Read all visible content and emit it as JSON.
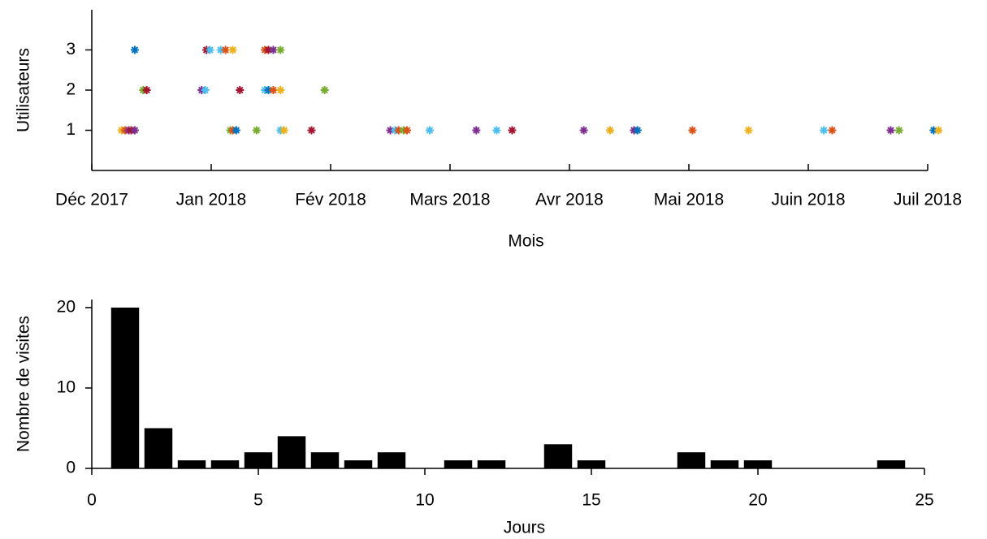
{
  "chart_data": [
    {
      "type": "scatter",
      "xlabel": "Mois",
      "ylabel": "Utilisateurs",
      "x": [
        0.36,
        0.96,
        0.99,
        1.08,
        1.12,
        1.18,
        1.45,
        1.48,
        1.52,
        1.58,
        0.43,
        0.46,
        0.92,
        0.95,
        1.24,
        1.45,
        1.48,
        1.52,
        1.58,
        1.95,
        0.25,
        0.28,
        0.31,
        0.33,
        0.36,
        1.16,
        1.18,
        1.21,
        1.38,
        1.58,
        1.61,
        1.84,
        2.5,
        2.54,
        2.57,
        2.61,
        2.64,
        2.83,
        3.22,
        3.39,
        3.52,
        4.12,
        4.34,
        4.54,
        4.57,
        5.03,
        5.5,
        6.13,
        6.2,
        6.69,
        6.76,
        7.05,
        7.09
      ],
      "values": [
        3,
        3,
        3,
        3,
        3,
        3,
        3,
        3,
        3,
        3,
        2,
        2,
        2,
        2,
        2,
        2,
        2,
        2,
        2,
        2,
        1,
        1,
        1,
        1,
        1,
        1,
        1,
        1,
        1,
        1,
        1,
        1,
        1,
        1,
        1,
        1,
        1,
        1,
        1,
        1,
        1,
        1,
        1,
        1,
        1,
        1,
        1,
        1,
        1,
        1,
        1,
        1,
        1
      ],
      "colors": [
        "#0072BD",
        "#A2142F",
        "#4DBEEE",
        "#4DBEEE",
        "#D95319",
        "#EDB120",
        "#D95319",
        "#A2142F",
        "#7E2F8E",
        "#77AC30",
        "#77AC30",
        "#A2142F",
        "#7E2F8E",
        "#4DBEEE",
        "#A2142F",
        "#4DBEEE",
        "#0072BD",
        "#D95319",
        "#EDB120",
        "#77AC30",
        "#EDB120",
        "#D95319",
        "#7E2F8E",
        "#A2142F",
        "#7E2F8E",
        "#77AC30",
        "#D95319",
        "#0072BD",
        "#77AC30",
        "#4DBEEE",
        "#EDB120",
        "#A2142F",
        "#7E2F8E",
        "#4DBEEE",
        "#D95319",
        "#77AC30",
        "#D95319",
        "#4DBEEE",
        "#7E2F8E",
        "#4DBEEE",
        "#A2142F",
        "#7E2F8E",
        "#EDB120",
        "#7E2F8E",
        "#0072BD",
        "#D95319",
        "#EDB120",
        "#4DBEEE",
        "#D95319",
        "#7E2F8E",
        "#77AC30",
        "#0072BD",
        "#EDB120"
      ],
      "xlim": [
        0,
        7
      ],
      "xticks": [
        {
          "value": 0,
          "label": "Déc 2017"
        },
        {
          "value": 1,
          "label": "Jan 2018"
        },
        {
          "value": 2,
          "label": "Fév 2018"
        },
        {
          "value": 3,
          "label": "Mars 2018"
        },
        {
          "value": 4,
          "label": "Avr 2018"
        },
        {
          "value": 5,
          "label": "Mai 2018"
        },
        {
          "value": 6,
          "label": "Juin 2018"
        },
        {
          "value": 7,
          "label": "Juil 2018"
        }
      ],
      "ylim": [
        0,
        4
      ],
      "yticks": [
        1,
        2,
        3
      ]
    },
    {
      "type": "histogram",
      "xlabel": "Jours",
      "ylabel": "Nombre de visites",
      "color": "#000000",
      "bins": [
        0.5,
        1.5,
        2.5,
        3.5,
        4.5,
        5.5,
        6.5,
        7.5,
        8.5,
        9.5,
        10.5,
        11.5,
        12.5,
        13.5,
        14.5,
        15.5,
        16.5,
        17.5,
        18.5,
        19.5,
        20.5,
        21.5,
        22.5,
        23.5,
        24.5
      ],
      "values": [
        20,
        5,
        1,
        1,
        2,
        4,
        2,
        1,
        2,
        0,
        1,
        1,
        0,
        3,
        1,
        0,
        0,
        2,
        1,
        1,
        0,
        0,
        0,
        1
      ],
      "xlim": [
        0,
        25
      ],
      "xticks": [
        0,
        5,
        10,
        15,
        20,
        25
      ],
      "ylim": [
        0,
        21
      ],
      "yticks": [
        0,
        10,
        20
      ]
    }
  ]
}
